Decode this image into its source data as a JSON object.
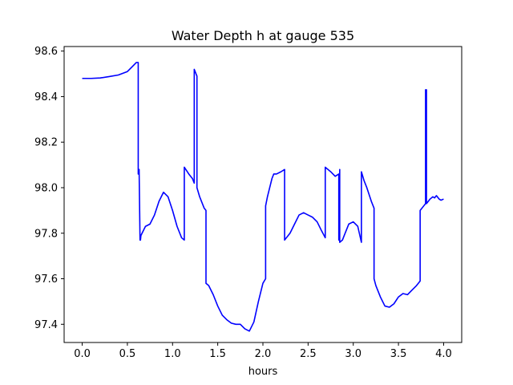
{
  "chart_data": {
    "type": "line",
    "title": "Water Depth h at gauge 535",
    "xlabel": "hours",
    "ylabel": "",
    "xlim": [
      -0.2,
      4.2
    ],
    "ylim": [
      97.32,
      98.62
    ],
    "xticks": [
      0.0,
      0.5,
      1.0,
      1.5,
      2.0,
      2.5,
      3.0,
      3.5,
      4.0
    ],
    "xtick_labels": [
      "0.0",
      "0.5",
      "1.0",
      "1.5",
      "2.0",
      "2.5",
      "3.0",
      "3.5",
      "4.0"
    ],
    "yticks": [
      97.4,
      97.6,
      97.8,
      98.0,
      98.2,
      98.4,
      98.6
    ],
    "ytick_labels": [
      "97.4",
      "97.6",
      "97.8",
      "98.0",
      "98.2",
      "98.4",
      "98.6"
    ],
    "grid": false,
    "series": [
      {
        "color": "#0000ff",
        "x": [
          0.0,
          0.1,
          0.2,
          0.3,
          0.4,
          0.5,
          0.55,
          0.6,
          0.62,
          0.62,
          0.63,
          0.64,
          0.645,
          0.65,
          0.7,
          0.75,
          0.8,
          0.85,
          0.9,
          0.95,
          1.0,
          1.05,
          1.1,
          1.13,
          1.13,
          1.18,
          1.22,
          1.24,
          1.24,
          1.27,
          1.27,
          1.3,
          1.35,
          1.37,
          1.37,
          1.4,
          1.45,
          1.5,
          1.55,
          1.6,
          1.65,
          1.7,
          1.75,
          1.8,
          1.85,
          1.9,
          1.95,
          2.0,
          2.03,
          2.03,
          2.05,
          2.1,
          2.12,
          2.15,
          2.2,
          2.24,
          2.24,
          2.3,
          2.35,
          2.4,
          2.45,
          2.5,
          2.55,
          2.6,
          2.65,
          2.69,
          2.69,
          2.75,
          2.8,
          2.84,
          2.84,
          2.85,
          2.85,
          2.88,
          2.9,
          2.95,
          3.0,
          3.05,
          3.09,
          3.09,
          3.12,
          3.15,
          3.2,
          3.23,
          3.23,
          3.25,
          3.3,
          3.35,
          3.4,
          3.45,
          3.5,
          3.55,
          3.6,
          3.65,
          3.7,
          3.74,
          3.74,
          3.78,
          3.8,
          3.8,
          3.81,
          3.81,
          3.85,
          3.88,
          3.9,
          3.92,
          3.95,
          3.97,
          4.0
        ],
        "y": [
          98.48,
          98.48,
          98.482,
          98.488,
          98.495,
          98.51,
          98.53,
          98.55,
          98.55,
          98.06,
          98.08,
          97.77,
          97.77,
          97.79,
          97.83,
          97.84,
          97.88,
          97.94,
          97.98,
          97.96,
          97.9,
          97.83,
          97.78,
          97.77,
          98.09,
          98.06,
          98.04,
          98.02,
          98.52,
          98.49,
          98.0,
          97.96,
          97.91,
          97.9,
          97.58,
          97.57,
          97.53,
          97.48,
          97.44,
          97.42,
          97.405,
          97.4,
          97.4,
          97.38,
          97.37,
          97.41,
          97.5,
          97.58,
          97.6,
          97.92,
          97.96,
          98.04,
          98.06,
          98.06,
          98.07,
          98.08,
          97.77,
          97.8,
          97.84,
          97.88,
          97.89,
          97.88,
          97.87,
          97.85,
          97.81,
          97.78,
          98.09,
          98.07,
          98.05,
          98.06,
          97.77,
          98.08,
          97.76,
          97.77,
          97.79,
          97.84,
          97.85,
          97.83,
          97.76,
          98.07,
          98.03,
          98.0,
          97.94,
          97.91,
          97.6,
          97.57,
          97.52,
          97.48,
          97.475,
          97.49,
          97.52,
          97.535,
          97.53,
          97.55,
          97.57,
          97.59,
          97.9,
          97.92,
          97.93,
          98.43,
          98.43,
          97.93,
          97.95,
          97.96,
          97.955,
          97.965,
          97.95,
          97.945,
          97.95
        ]
      }
    ]
  }
}
